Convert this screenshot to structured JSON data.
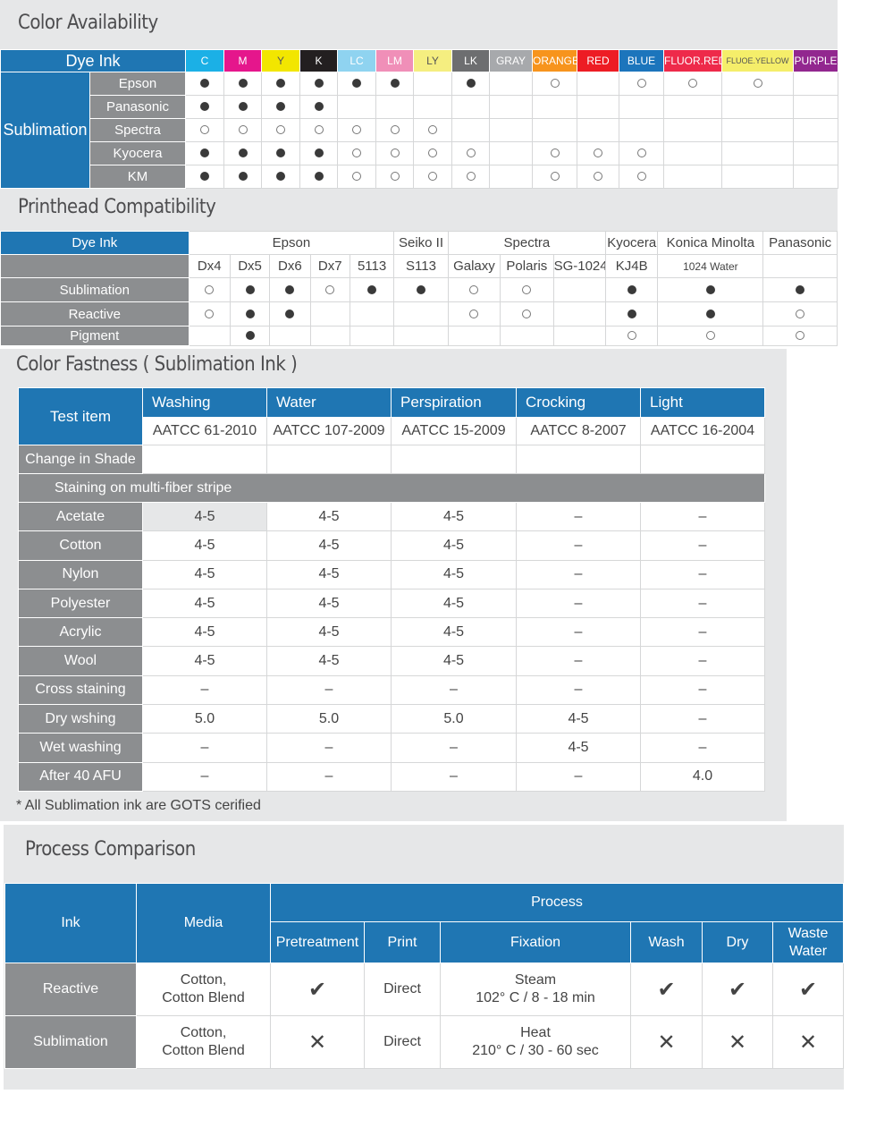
{
  "color_availability": {
    "title": "Color Availability",
    "corner": "Dye Ink",
    "group": "Sublimation",
    "inks": [
      {
        "label": "C",
        "color": "#1bb0e6"
      },
      {
        "label": "M",
        "color": "#e5168c"
      },
      {
        "label": "Y",
        "color": "#f2e600",
        "text": "#555"
      },
      {
        "label": "K",
        "color": "#231f20"
      },
      {
        "label": "LC",
        "color": "#8fd3f0"
      },
      {
        "label": "LM",
        "color": "#f08fb8"
      },
      {
        "label": "LY",
        "color": "#f5ee80",
        "text": "#555"
      },
      {
        "label": "LK",
        "color": "#6d6e70"
      },
      {
        "label": "GRAY",
        "color": "#a7a9ac"
      },
      {
        "label": "ORANGE",
        "color": "#f7941d"
      },
      {
        "label": "RED",
        "color": "#ed1c24"
      },
      {
        "label": "BLUE",
        "color": "#1c75bc"
      },
      {
        "label": "FLUOR.RED",
        "color": "#ee2a4a"
      },
      {
        "label": "FLUOE.YELLOW",
        "color": "#f5ee6a",
        "text": "#555"
      },
      {
        "label": "PURPLE",
        "color": "#92278f"
      }
    ],
    "legend": {
      "F": "filled-dot",
      "O": "open-dot"
    },
    "rows": [
      {
        "label": "Epson",
        "cells": [
          "F",
          "F",
          "F",
          "F",
          "F",
          "F",
          "",
          "F",
          "",
          "O",
          "",
          "O",
          "O",
          "O",
          ""
        ]
      },
      {
        "label": "Panasonic",
        "cells": [
          "F",
          "F",
          "F",
          "F",
          "",
          "",
          "",
          "",
          "",
          "",
          "",
          "",
          "",
          "",
          ""
        ]
      },
      {
        "label": "Spectra",
        "cells": [
          "O",
          "O",
          "O",
          "O",
          "O",
          "O",
          "O",
          "",
          "",
          "",
          "",
          "",
          "",
          "",
          ""
        ]
      },
      {
        "label": "Kyocera",
        "cells": [
          "F",
          "F",
          "F",
          "F",
          "O",
          "O",
          "O",
          "O",
          "",
          "O",
          "O",
          "O",
          "",
          "",
          ""
        ]
      },
      {
        "label": "KM",
        "cells": [
          "F",
          "F",
          "F",
          "F",
          "O",
          "O",
          "O",
          "O",
          "",
          "O",
          "O",
          "O",
          "",
          "",
          ""
        ]
      }
    ]
  },
  "printhead": {
    "title": "Printhead Compatibility",
    "corner": "Dye Ink",
    "brands": [
      {
        "label": "Epson",
        "span": 5
      },
      {
        "label": "Seiko II",
        "span": 1
      },
      {
        "label": "Spectra",
        "span": 3
      },
      {
        "label": "Kyocera",
        "span": 1
      },
      {
        "label": "Konica Minolta",
        "span": 1
      },
      {
        "label": "Panasonic",
        "span": 1
      }
    ],
    "models": [
      "Dx4",
      "Dx5",
      "Dx6",
      "Dx7",
      "5113",
      "S113",
      "Galaxy",
      "Polaris",
      "SG-1024",
      "KJ4B",
      "1024 Water",
      ""
    ],
    "rows": [
      {
        "label": "Sublimation",
        "cells": [
          "O",
          "F",
          "F",
          "O",
          "F",
          "F",
          "O",
          "O",
          "",
          "F",
          "F",
          "F"
        ]
      },
      {
        "label": "Reactive",
        "cells": [
          "O",
          "F",
          "F",
          "",
          "",
          "",
          "O",
          "O",
          "",
          "F",
          "F",
          "O"
        ]
      },
      {
        "label": "Pigment",
        "cells": [
          "",
          "F",
          "",
          "",
          "",
          "",
          "",
          "",
          "",
          "O",
          "O",
          "O"
        ]
      }
    ]
  },
  "fastness": {
    "title": "Color Fastness ( Sublimation Ink )",
    "test_item": "Test item",
    "columns": [
      {
        "name": "Washing",
        "std": "AATCC 61-2010"
      },
      {
        "name": "Water",
        "std": "AATCC 107-2009"
      },
      {
        "name": "Perspiration",
        "std": "AATCC 15-2009"
      },
      {
        "name": "Crocking",
        "std": "AATCC 8-2007"
      },
      {
        "name": "Light",
        "std": "AATCC 16-2004"
      }
    ],
    "change_in_shade": "Change in Shade",
    "staining": "Staining on multi-fiber stripe",
    "rows": [
      {
        "label": "Acetate",
        "cells": [
          "4-5",
          "4-5",
          "4-5",
          "–",
          "–"
        ]
      },
      {
        "label": "Cotton",
        "cells": [
          "4-5",
          "4-5",
          "4-5",
          "–",
          "–"
        ]
      },
      {
        "label": "Nylon",
        "cells": [
          "4-5",
          "4-5",
          "4-5",
          "–",
          "–"
        ]
      },
      {
        "label": "Polyester",
        "cells": [
          "4-5",
          "4-5",
          "4-5",
          "–",
          "–"
        ]
      },
      {
        "label": "Acrylic",
        "cells": [
          "4-5",
          "4-5",
          "4-5",
          "–",
          "–"
        ]
      },
      {
        "label": "Wool",
        "cells": [
          "4-5",
          "4-5",
          "4-5",
          "–",
          "–"
        ]
      },
      {
        "label": "Cross staining",
        "cells": [
          "–",
          "–",
          "–",
          "–",
          "–"
        ]
      },
      {
        "label": "Dry wshing",
        "cells": [
          "5.0",
          "5.0",
          "5.0",
          "4-5",
          "–"
        ]
      },
      {
        "label": "Wet washing",
        "cells": [
          "–",
          "–",
          "–",
          "4-5",
          "–"
        ]
      },
      {
        "label": "After 40 AFU",
        "cells": [
          "–",
          "–",
          "–",
          "–",
          "4.0"
        ]
      }
    ],
    "note": "* All Sublimation ink are GOTS cerified"
  },
  "process": {
    "title": "Process Comparison",
    "ink": "Ink",
    "media": "Media",
    "process": "Process",
    "steps": [
      "Pretreatment",
      "Print",
      "Fixation",
      "Wash",
      "Dry",
      "Waste Water"
    ],
    "rows": [
      {
        "ink": "Reactive",
        "media": [
          "Cotton,",
          "Cotton Blend"
        ],
        "pretreat": "check",
        "print": "Direct",
        "fix": [
          "Steam",
          "102° C / 8 - 18 min"
        ],
        "wash": "check",
        "dry": "check",
        "waste": "check"
      },
      {
        "ink": "Sublimation",
        "media": [
          "Cotton,",
          "Cotton Blend"
        ],
        "pretreat": "cross",
        "print": "Direct",
        "fix": [
          "Heat",
          "210° C / 30 - 60 sec"
        ],
        "wash": "cross",
        "dry": "cross",
        "waste": "cross"
      }
    ]
  }
}
